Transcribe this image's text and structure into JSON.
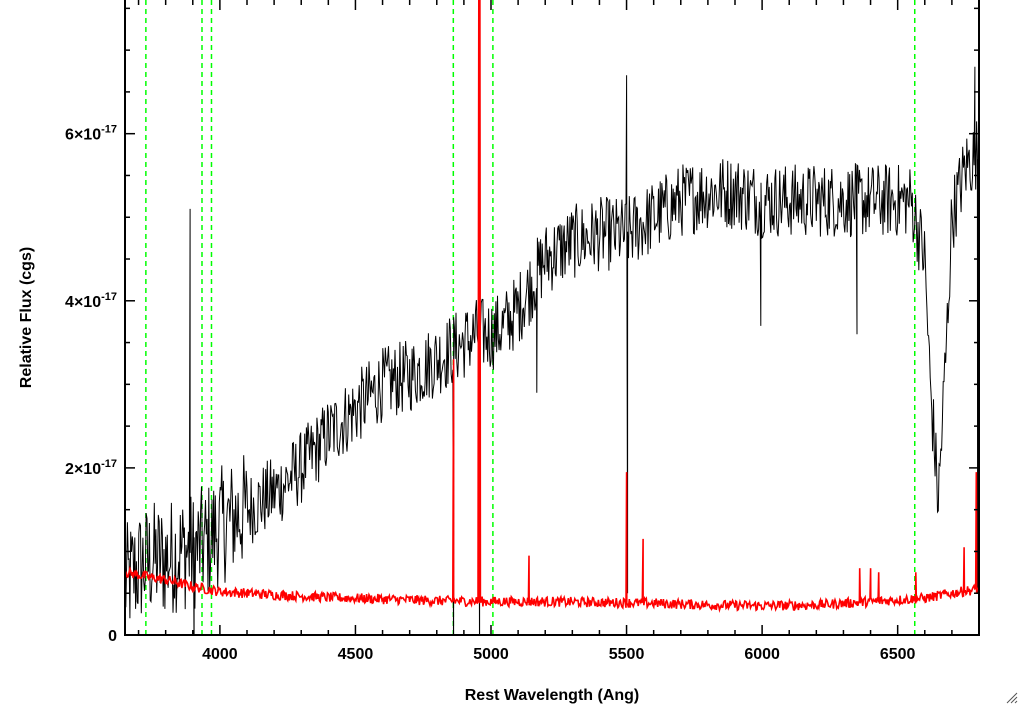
{
  "chart_data": {
    "type": "line",
    "title": "",
    "xlabel": "Rest Wavelength (Ang)",
    "ylabel": "Relative Flux (cgs)",
    "xlim": [
      3650,
      6800
    ],
    "ylim": [
      0,
      7.6e-17
    ],
    "x_ticks": [
      {
        "value": 4000,
        "label": "4000"
      },
      {
        "value": 4500,
        "label": "4500"
      },
      {
        "value": 5000,
        "label": "5000"
      },
      {
        "value": 5500,
        "label": "5500"
      },
      {
        "value": 6000,
        "label": "6000"
      },
      {
        "value": 6500,
        "label": "6500"
      }
    ],
    "y_ticks": [
      {
        "value": 0,
        "mantissa": "0",
        "exponent": ""
      },
      {
        "value": 2e-17,
        "mantissa": "2×10",
        "exponent": "-17"
      },
      {
        "value": 4e-17,
        "mantissa": "4×10",
        "exponent": "-17"
      },
      {
        "value": 6e-17,
        "mantissa": "6×10",
        "exponent": "-17"
      }
    ],
    "grid": false,
    "series": [
      {
        "color": "#000000",
        "noise": 4.5e-18,
        "x": [
          3650,
          3700,
          3750,
          3800,
          3850,
          3900,
          3950,
          4000,
          4050,
          4100,
          4200,
          4300,
          4400,
          4500,
          4600,
          4700,
          4800,
          4850,
          4900,
          4950,
          5000,
          5050,
          5100,
          5150,
          5200,
          5250,
          5300,
          5400,
          5500,
          5600,
          5700,
          5800,
          5900,
          6000,
          6100,
          6200,
          6300,
          6400,
          6500,
          6550,
          6600,
          6620,
          6650,
          6680,
          6700,
          6750,
          6800
        ],
        "y": [
          6e-18,
          8e-18,
          9e-18,
          9e-18,
          1e-17,
          1e-17,
          1.1e-17,
          1.3e-17,
          1.4e-17,
          1.5e-17,
          1.7e-17,
          2e-17,
          2.4e-17,
          2.7e-17,
          3e-17,
          3.1e-17,
          3.3e-17,
          3.4e-17,
          3.5e-17,
          3.6e-17,
          3.6e-17,
          3.7e-17,
          3.9e-17,
          4.2e-17,
          4.5e-17,
          4.6e-17,
          4.7e-17,
          4.8e-17,
          4.8e-17,
          5e-17,
          5.2e-17,
          5.3e-17,
          5.3e-17,
          5.2e-17,
          5.2e-17,
          5.2e-17,
          5.2e-17,
          5.2e-17,
          5.2e-17,
          5.2e-17,
          4.5e-17,
          3e-17,
          1.6e-17,
          3.5e-17,
          5e-17,
          5.6e-17,
          5.8e-17
        ],
        "features": [
          {
            "x": 3890,
            "y": 5.1e-17
          },
          {
            "x": 3905,
            "y": -3e-18
          },
          {
            "x": 4862,
            "y": -6e-18
          },
          {
            "x": 4958,
            "y": -6e-18
          },
          {
            "x": 5169,
            "y": 2.9e-17
          },
          {
            "x": 5500,
            "y": 6.7e-17
          },
          {
            "x": 5504,
            "y": 5e-18
          },
          {
            "x": 5995,
            "y": 3.7e-17
          },
          {
            "x": 6350,
            "y": 3.6e-17
          },
          {
            "x": 6785,
            "y": 6.8e-17
          },
          {
            "x": 6795,
            "y": 5e-18
          }
        ]
      },
      {
        "color": "#ff0000",
        "noise": 6e-19,
        "x": [
          3650,
          3700,
          3800,
          3900,
          4000,
          4200,
          4400,
          4600,
          4800,
          5000,
          5200,
          5400,
          5600,
          5800,
          6000,
          6200,
          6400,
          6600,
          6700,
          6800
        ],
        "y": [
          7.5e-18,
          7.2e-18,
          6.6e-18,
          5.8e-18,
          5.2e-18,
          4.8e-18,
          4.5e-18,
          4.3e-18,
          4.1e-18,
          4e-18,
          4e-18,
          3.9e-18,
          3.8e-18,
          3.6e-18,
          3.5e-18,
          3.6e-18,
          4e-18,
          4.4e-18,
          5e-18,
          5.5e-18
        ],
        "features": [
          {
            "x": 4862,
            "y": 3.3e-17
          },
          {
            "x": 4955,
            "y": 7.6e-17
          },
          {
            "x": 4959,
            "y": 7.6e-17
          },
          {
            "x": 5140,
            "y": 9.5e-18
          },
          {
            "x": 5500,
            "y": 1.95e-17
          },
          {
            "x": 5561,
            "y": 1.15e-17
          },
          {
            "x": 6360,
            "y": 8e-18
          },
          {
            "x": 6400,
            "y": 8e-18
          },
          {
            "x": 6430,
            "y": 7.5e-18
          },
          {
            "x": 6567,
            "y": 7.5e-18
          },
          {
            "x": 6745,
            "y": 1.05e-17
          },
          {
            "x": 6790,
            "y": 1.95e-17
          }
        ]
      }
    ],
    "reference_lines": {
      "color": "#00ff00",
      "style": "dashed",
      "x": [
        3727,
        3934,
        3969,
        4861,
        5007,
        6563
      ]
    }
  }
}
